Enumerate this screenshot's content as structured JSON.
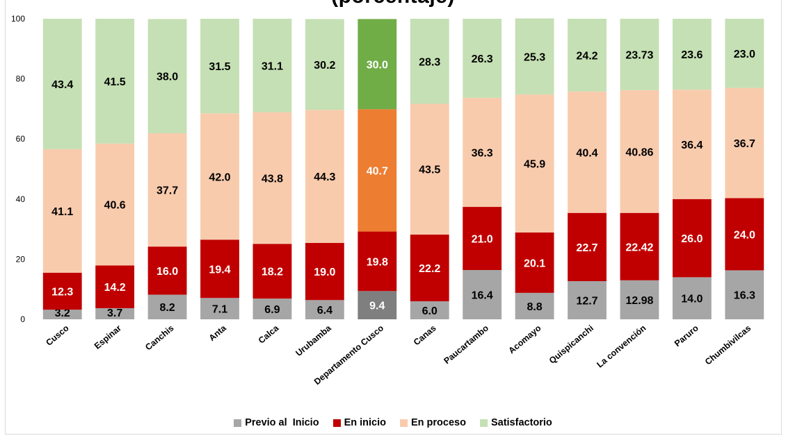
{
  "chart_data": {
    "type": "bar",
    "stacked": true,
    "title": "(porcentaje)",
    "ylim": [
      0,
      100
    ],
    "yticks": [
      "0",
      "20",
      "40",
      "60",
      "80",
      "100"
    ],
    "grid": false,
    "legend_position": "bottom",
    "categories": [
      "Cusco",
      "Espinar",
      "Canchis",
      "Anta",
      "Calca",
      "Urubamba",
      "Departamento Cusco",
      "Canas",
      "Paucartambo",
      "Acomayo",
      "Quispicanchi",
      "La convención",
      "Paruro",
      "Chumbivilcas"
    ],
    "highlight_index": 6,
    "series": [
      {
        "name": "Previo al  Inicio",
        "color": "#a6a6a6",
        "highlight_color": "#7f7f7f",
        "values": [
          3.2,
          3.7,
          8.2,
          7.1,
          6.9,
          6.4,
          9.4,
          6.0,
          16.4,
          8.8,
          12.7,
          12.98,
          14.0,
          16.3
        ],
        "labels": [
          "3.2",
          "3.7",
          "8.2",
          "7.1",
          "6.9",
          "6.4",
          "9.4",
          "6.0",
          "16.4",
          "8.8",
          "12.7",
          "12.98",
          "14.0",
          "16.3"
        ]
      },
      {
        "name": "En inicio",
        "color": "#c00000",
        "highlight_color": "#c00000",
        "values": [
          12.3,
          14.2,
          16.0,
          19.4,
          18.2,
          19.0,
          19.8,
          22.2,
          21.0,
          20.1,
          22.7,
          22.42,
          26.0,
          24.0
        ],
        "labels": [
          "12.3",
          "14.2",
          "16.0",
          "19.4",
          "18.2",
          "19.0",
          "19.8",
          "22.2",
          "21.0",
          "20.1",
          "22.7",
          "22.42",
          "26.0",
          "24.0"
        ]
      },
      {
        "name": "En proceso",
        "color": "#f8cbad",
        "highlight_color": "#ed7d31",
        "values": [
          41.1,
          40.6,
          37.7,
          42.0,
          43.8,
          44.3,
          40.7,
          43.5,
          36.3,
          45.9,
          40.4,
          40.86,
          36.4,
          36.7
        ],
        "labels": [
          "41.1",
          "40.6",
          "37.7",
          "42.0",
          "43.8",
          "44.3",
          "40.7",
          "43.5",
          "36.3",
          "45.9",
          "40.4",
          "40.86",
          "36.4",
          "36.7"
        ]
      },
      {
        "name": "Satisfactorio",
        "color": "#c5e0b4",
        "highlight_color": "#70ad47",
        "values": [
          43.4,
          41.5,
          38.0,
          31.5,
          31.1,
          30.2,
          30.0,
          28.3,
          26.3,
          25.3,
          24.2,
          23.73,
          23.6,
          23.0
        ],
        "labels": [
          "43.4",
          "41.5",
          "38.0",
          "31.5",
          "31.1",
          "30.2",
          "30.0",
          "28.3",
          "26.3",
          "25.3",
          "24.2",
          "23.73",
          "23.6",
          "23.0"
        ]
      }
    ]
  }
}
